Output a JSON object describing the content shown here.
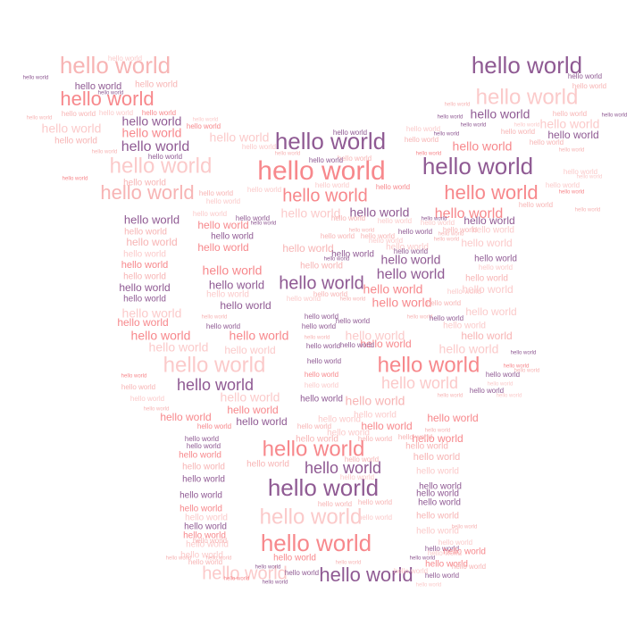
{
  "word": "hello world",
  "palette": {
    "dark_purple": "#8f5a93",
    "coral": "#f7888c",
    "pink": "#f7b4b4",
    "pale_pink": "#fbcaca",
    "mauve": "#c98cb0"
  }
}
